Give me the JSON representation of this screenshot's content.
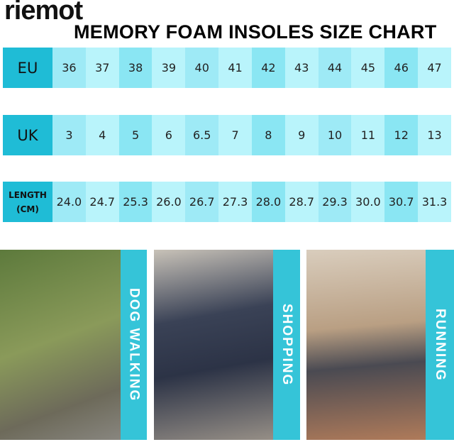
{
  "brand": "riemot",
  "title": "MEMORY FOAM INSOLES SIZE CHART",
  "rows": [
    {
      "label": "EU",
      "values": [
        "36",
        "37",
        "38",
        "39",
        "40",
        "41",
        "42",
        "43",
        "44",
        "45",
        "46",
        "47"
      ]
    },
    {
      "label": "UK",
      "values": [
        "3",
        "4",
        "5",
        "6",
        "6.5",
        "7",
        "8",
        "9",
        "10",
        "11",
        "12",
        "13"
      ]
    },
    {
      "label_line1": "LENGTH",
      "label_line2": "(CM)",
      "values": [
        "24.0",
        "24.7",
        "25.3",
        "26.0",
        "26.7",
        "27.3",
        "28.0",
        "28.7",
        "29.3",
        "30.0",
        "30.7",
        "31.3"
      ]
    }
  ],
  "panels": [
    {
      "label": "DOG WALKING"
    },
    {
      "label": "SHOPPING"
    },
    {
      "label": "RUNNING"
    }
  ],
  "colors": {
    "header": "#1fbcd6",
    "cell_dark": "#8ae6f3",
    "cell_light": "#b9f4fb",
    "band": "#35c4d8"
  }
}
